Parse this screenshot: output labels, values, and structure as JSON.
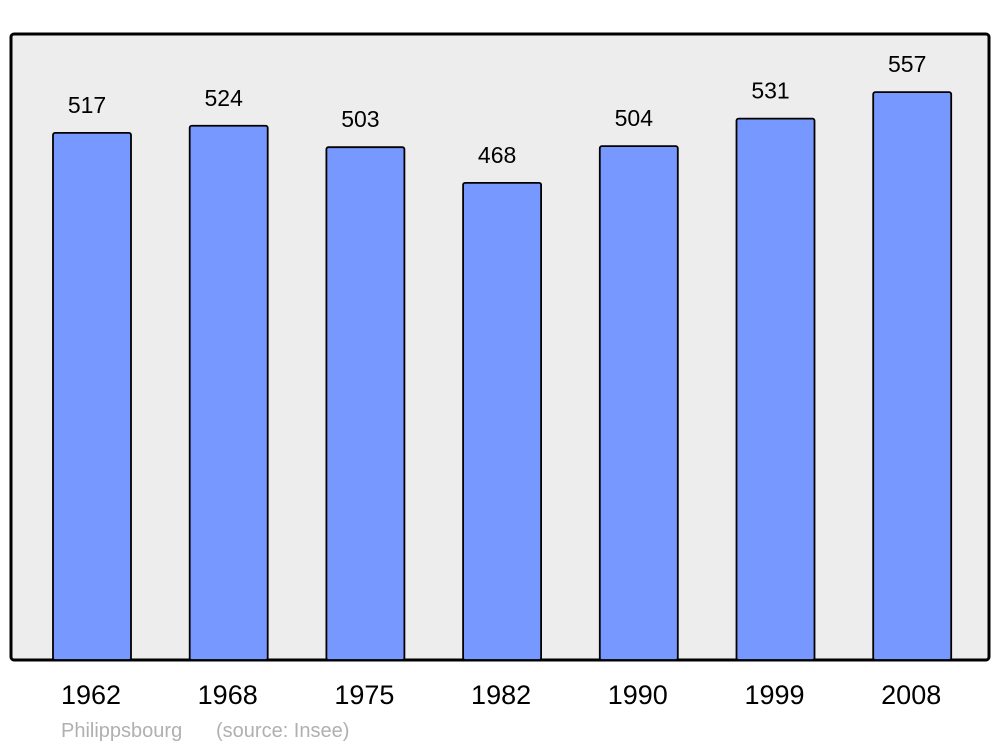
{
  "chart_data": {
    "type": "bar",
    "categories": [
      "1962",
      "1968",
      "1975",
      "1982",
      "1990",
      "1999",
      "2008"
    ],
    "values": [
      517,
      524,
      503,
      468,
      504,
      531,
      557
    ],
    "title": "",
    "xlabel": "",
    "ylabel": "",
    "ylim": [
      0,
      614
    ],
    "grid": false,
    "data_labels": true,
    "colors": {
      "bar": "#7799ff",
      "plot_background": "#ededed",
      "border": "#000000"
    }
  },
  "footer": {
    "place": "Philippsbourg",
    "source": "(source: Insee)"
  }
}
